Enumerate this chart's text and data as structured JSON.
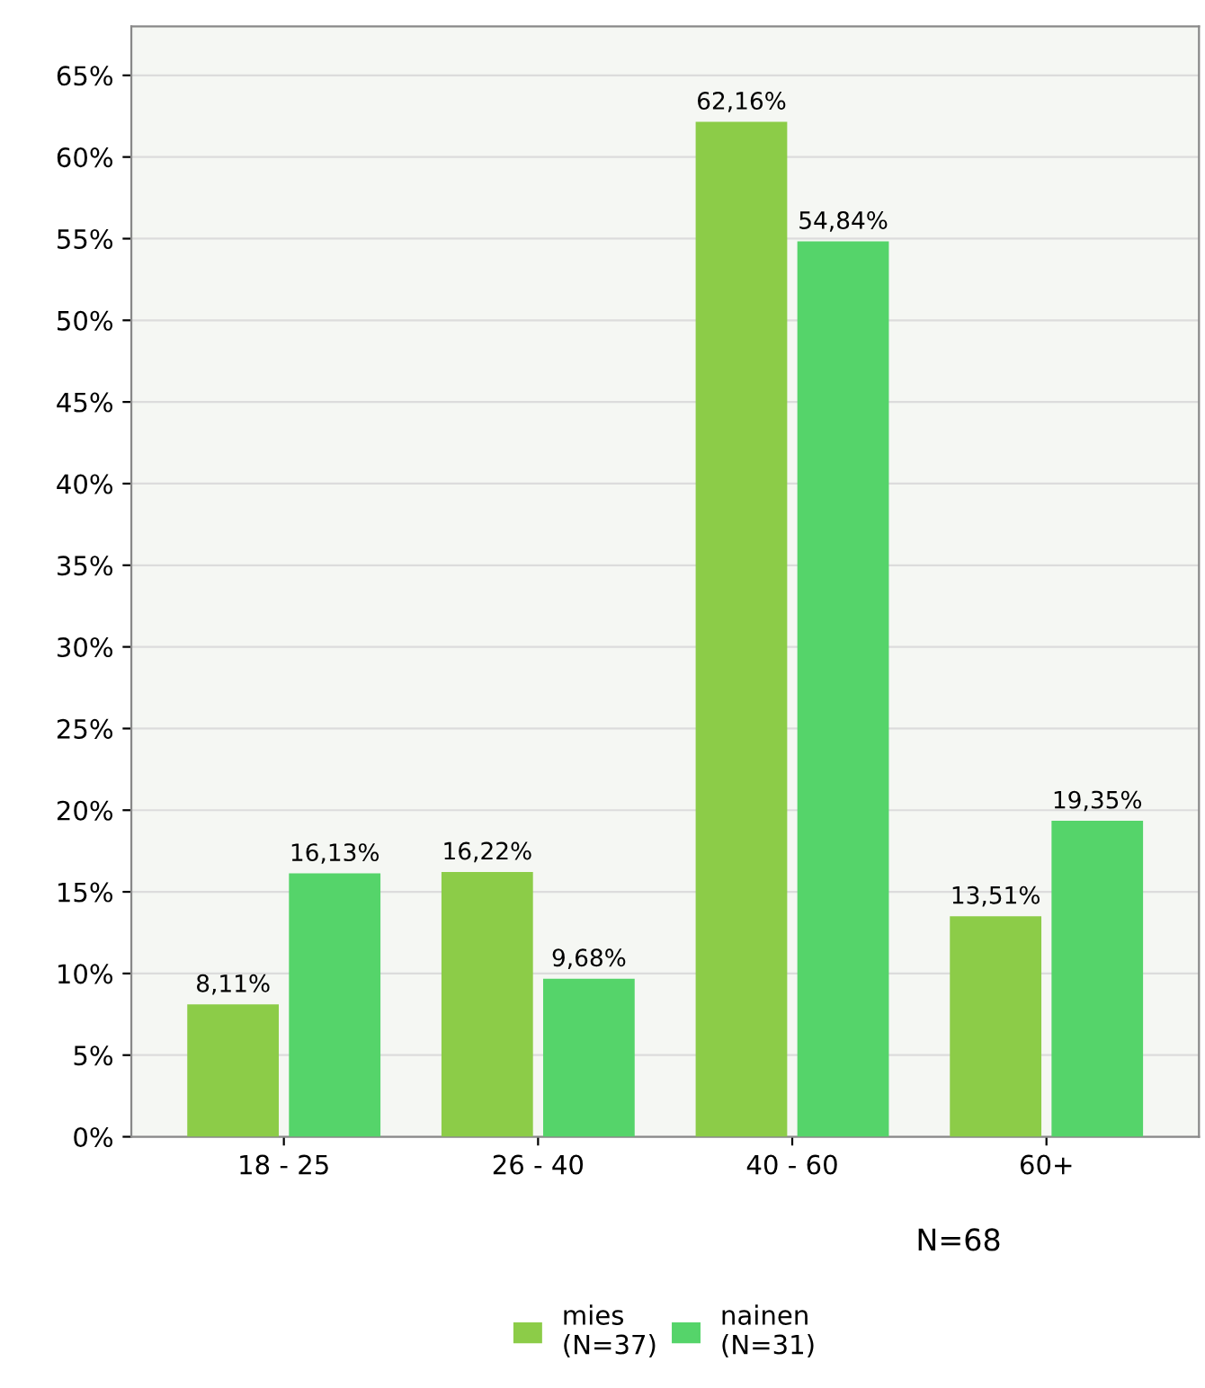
{
  "chart_data": {
    "type": "bar",
    "categories": [
      "18 - 25",
      "26 - 40",
      "40 - 60",
      "60+"
    ],
    "series": [
      {
        "name": "mies\n(N=37)",
        "color": "#8ccc48",
        "values": [
          8.11,
          16.22,
          62.16,
          13.51
        ],
        "value_labels": [
          "8,11%",
          "16,22%",
          "62,16%",
          "13,51%"
        ]
      },
      {
        "name": "nainen\n(N=31)",
        "color": "#55d46a",
        "values": [
          16.13,
          9.68,
          54.84,
          19.35
        ],
        "value_labels": [
          "16,13%",
          "9,68%",
          "54,84%",
          "19,35%"
        ]
      }
    ],
    "ylim": [
      0,
      68
    ],
    "yticks": [
      {
        "value": 0,
        "label": "0%"
      },
      {
        "value": 5,
        "label": "5%"
      },
      {
        "value": 10,
        "label": "10%"
      },
      {
        "value": 15,
        "label": "15%"
      },
      {
        "value": 20,
        "label": "20%"
      },
      {
        "value": 25,
        "label": "25%"
      },
      {
        "value": 30,
        "label": "30%"
      },
      {
        "value": 35,
        "label": "35%"
      },
      {
        "value": 40,
        "label": "40%"
      },
      {
        "value": 45,
        "label": "45%"
      },
      {
        "value": 50,
        "label": "50%"
      },
      {
        "value": 55,
        "label": "55%"
      },
      {
        "value": 60,
        "label": "60%"
      },
      {
        "value": 65,
        "label": "65%"
      }
    ],
    "grid": "y",
    "legend": "bottom",
    "annotations": [
      "N=68"
    ]
  }
}
